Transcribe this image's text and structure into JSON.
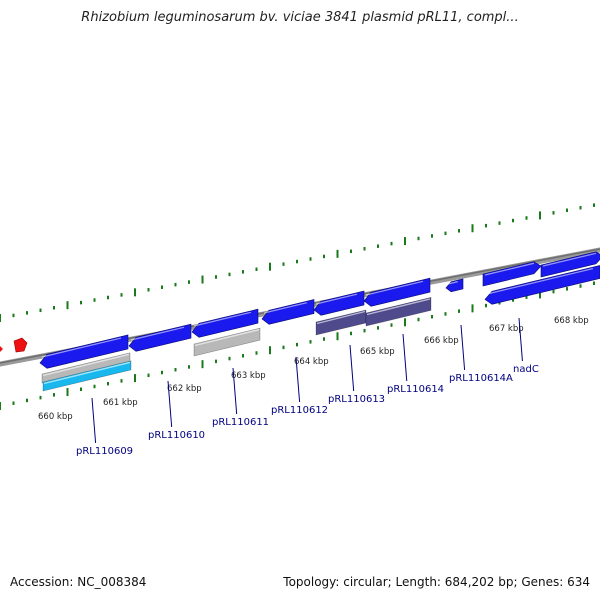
{
  "title": "Rhizobium leguminosarum bv. viciae 3841 plasmid pRL11, compl...",
  "footer": {
    "accession": "Accession: NC_008384",
    "stats": "Topology: circular; Length: 684,202 bp; Genes: 634"
  },
  "colors": {
    "cds": "#1a1aee",
    "cds_grey": "#b8b8b8",
    "cds_purple": "#4e4a8c",
    "cds_cyan": "#18b8ee",
    "marker_red": "#ee1111",
    "tick_green": "#1a7a1a",
    "backbone": "#8a8a8a",
    "label": "#000080"
  },
  "kbp_labels": [
    "660 kbp",
    "661 kbp",
    "662 kbp",
    "663 kbp",
    "664 kbp",
    "665 kbp",
    "666 kbp",
    "667 kbp",
    "668 kbp"
  ],
  "gene_labels": [
    "pRL110609",
    "pRL110610",
    "pRL110611",
    "pRL110612",
    "pRL110613",
    "pRL110614",
    "pRL110614A",
    "nadC"
  ]
}
